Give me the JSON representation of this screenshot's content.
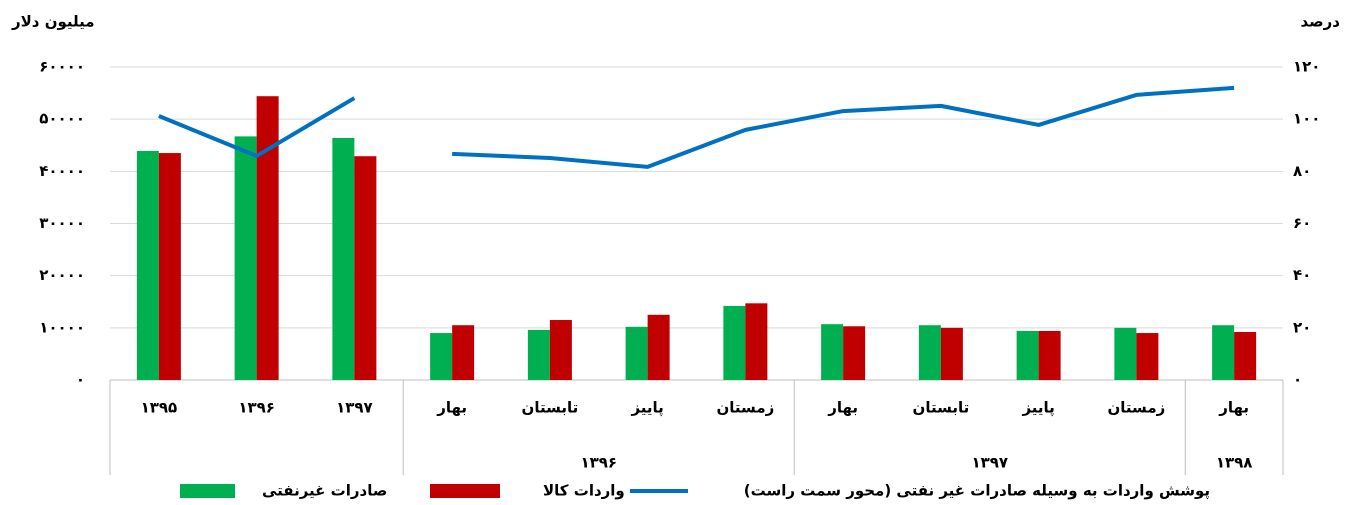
{
  "chart_data": {
    "type": "bar",
    "y_axis_label": "میلیون دلار",
    "y2_axis_label": "درصد",
    "ylim": [
      0,
      60000
    ],
    "yticks": [
      {
        "value": 0,
        "label": "۰"
      },
      {
        "value": 10000,
        "label": "۱۰۰۰۰"
      },
      {
        "value": 20000,
        "label": "۲۰۰۰۰"
      },
      {
        "value": 30000,
        "label": "۳۰۰۰۰"
      },
      {
        "value": 40000,
        "label": "۴۰۰۰۰"
      },
      {
        "value": 50000,
        "label": "۵۰۰۰۰"
      },
      {
        "value": 60000,
        "label": "۶۰۰۰۰"
      }
    ],
    "y2lim": [
      0,
      120
    ],
    "y2ticks": [
      {
        "value": 0,
        "label": "۰"
      },
      {
        "value": 20,
        "label": "۲۰"
      },
      {
        "value": 40,
        "label": "۴۰"
      },
      {
        "value": 60,
        "label": "۶۰"
      },
      {
        "value": 80,
        "label": "۸۰"
      },
      {
        "value": 100,
        "label": "۱۰۰"
      },
      {
        "value": 120,
        "label": "۱۲۰"
      }
    ],
    "grid": true,
    "series": [
      {
        "name": "صادرات غیرنفتی",
        "color": "#00b050",
        "type": "bar"
      },
      {
        "name": "واردات کالا",
        "color": "#c00000",
        "type": "bar"
      },
      {
        "name": "پوشش واردات به وسیله صادرات غیر نفتی (محور سمت راست)",
        "color": "#0070c0",
        "type": "line",
        "axis": "y2"
      }
    ],
    "sections": [
      {
        "groups": [
          {
            "categories": [
              "۱۳۹۵",
              "۱۳۹۶",
              "۱۳۹۷"
            ]
          }
        ],
        "values": [
          [
            43900,
            46700,
            46400
          ],
          [
            43500,
            54400,
            42900
          ],
          [
            101.2,
            85.9,
            108.1
          ]
        ]
      },
      {
        "groups": [
          {
            "label": "۱۳۹۶",
            "categories": [
              "بهار",
              "تابستان",
              "پاییز",
              "زمستان"
            ]
          },
          {
            "label": "۱۳۹۷",
            "categories": [
              "بهار",
              "تابستان",
              "پاییز",
              "زمستان"
            ]
          },
          {
            "label": "۱۳۹۸",
            "categories": [
              "بهار"
            ]
          }
        ],
        "values": [
          [
            9000,
            9600,
            10200,
            14200,
            10700,
            10500,
            9400,
            10000,
            10500
          ],
          [
            10500,
            11500,
            12500,
            14700,
            10300,
            10000,
            9400,
            9000,
            9200
          ],
          [
            86.7,
            85.1,
            81.7,
            95.9,
            103.1,
            105.1,
            97.8,
            109.3,
            112.0
          ]
        ]
      }
    ]
  }
}
